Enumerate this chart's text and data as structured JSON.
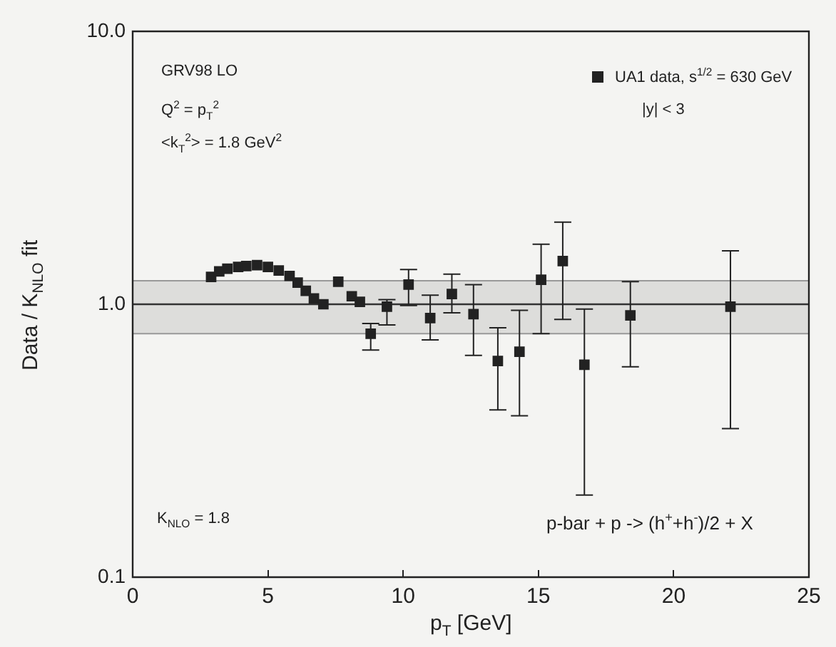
{
  "chart_data": {
    "type": "scatter",
    "xlabel": "p$_{T}$ [GeV]",
    "ylabel": "Data / K$_{NLO}$ fit",
    "xlim": [
      0,
      25
    ],
    "xticks": [
      0,
      5,
      10,
      15,
      20,
      25
    ],
    "ylim": [
      0.1,
      10
    ],
    "yticks": [
      {
        "value": 0.1,
        "label": "0.1"
      },
      {
        "value": 1,
        "label": "1.0"
      },
      {
        "value": 10,
        "label": "10.0"
      }
    ],
    "log": "y",
    "marker": "square",
    "legend": "top right",
    "grid": false,
    "series": [
      {
        "name": "UA1 data, s$^{1/2}$ = 630 GeV",
        "color": "#222222",
        "x": [
          2.9,
          3.2,
          3.5,
          3.9,
          4.2,
          4.6,
          5.0,
          5.4,
          5.8,
          6.1,
          6.4,
          6.7,
          7.05,
          7.6,
          8.1,
          8.4,
          8.8,
          9.4,
          10.2,
          11.0,
          11.8,
          12.6,
          13.5,
          14.3,
          15.1,
          15.9,
          16.7,
          18.4,
          22.1
        ],
        "values": [
          1.26,
          1.32,
          1.35,
          1.37,
          1.38,
          1.39,
          1.37,
          1.33,
          1.27,
          1.2,
          1.12,
          1.05,
          1.0,
          1.21,
          1.07,
          1.02,
          0.78,
          0.98,
          1.18,
          0.89,
          1.09,
          0.92,
          0.62,
          0.67,
          1.23,
          1.44,
          0.6,
          0.91,
          0.98
        ],
        "errors": [
          null,
          null,
          null,
          null,
          null,
          null,
          null,
          null,
          null,
          null,
          null,
          null,
          null,
          null,
          null,
          null,
          [
            0.68,
            0.85
          ],
          [
            0.84,
            1.04
          ],
          [
            0.99,
            1.34
          ],
          [
            0.74,
            1.08
          ],
          [
            0.93,
            1.29
          ],
          [
            0.65,
            1.18
          ],
          [
            0.41,
            0.82
          ],
          [
            0.39,
            0.95
          ],
          [
            0.78,
            1.66
          ],
          [
            0.88,
            2.0
          ],
          [
            0.2,
            0.96
          ],
          [
            0.59,
            1.21
          ],
          [
            0.35,
            1.57
          ]
        ]
      }
    ],
    "ref_lines": [
      {
        "axis": "y",
        "value": 1,
        "color": "#333333"
      }
    ],
    "bands": [
      {
        "axis": "y",
        "from": 0.78,
        "to": 1.22,
        "color": "#999999"
      }
    ],
    "annotations": [
      "GRV98 LO",
      "Q$^{2}$ = p$_{T}$$^{2}$",
      "<k$_{T}$$^{2}$> = 1.8 GeV$^{2}$",
      "|y| < 3",
      "K$_{NLO}$ = 1.8",
      "p-bar + p -> (h$^{+}$+h$^{-}$)/2 + X"
    ]
  }
}
